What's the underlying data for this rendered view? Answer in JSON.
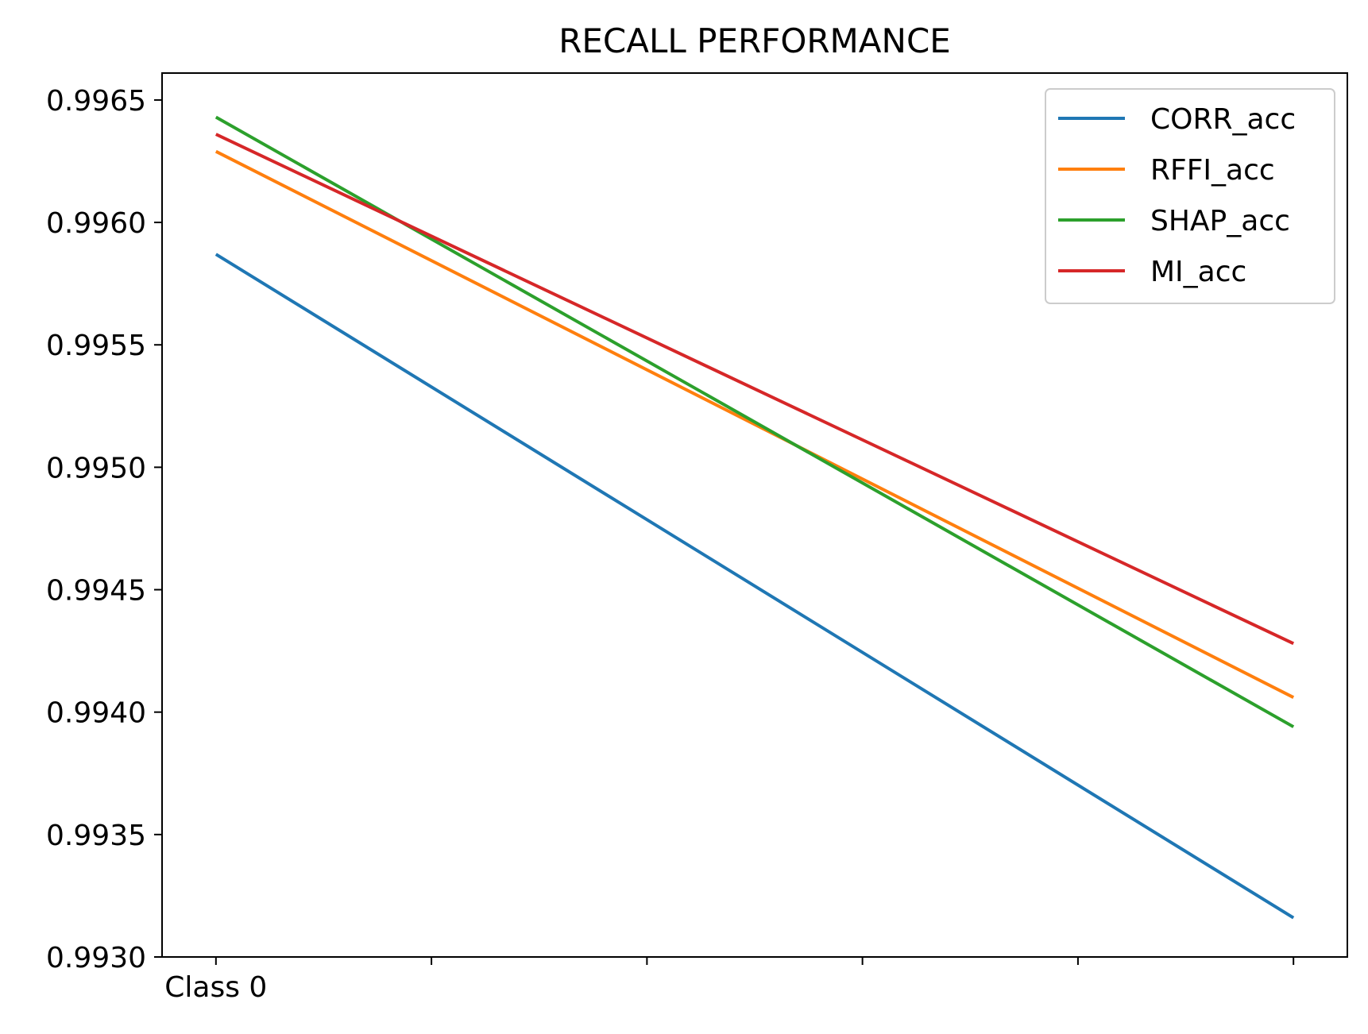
{
  "chart_data": {
    "type": "line",
    "title": "RECALL PERFORMANCE",
    "xlabel": "",
    "ylabel": "",
    "x": [
      0,
      5
    ],
    "x_tick_positions": [
      0,
      1,
      2,
      3,
      4,
      5
    ],
    "x_tick_labels": [
      "Class 0",
      "",
      "",
      "",
      "",
      ""
    ],
    "xlim": [
      -0.25,
      5.25
    ],
    "ylim": [
      0.993,
      0.99661
    ],
    "y_ticks": [
      0.993,
      0.9935,
      0.994,
      0.9945,
      0.995,
      0.9955,
      0.996,
      0.9965
    ],
    "y_tick_labels": [
      "0.9930",
      "0.9935",
      "0.9940",
      "0.9945",
      "0.9950",
      "0.9955",
      "0.9960",
      "0.9965"
    ],
    "grid": false,
    "legend_position": "top-right",
    "series": [
      {
        "name": "CORR_acc",
        "color": "#1f77b4",
        "values": [
          0.99587,
          0.99316
        ]
      },
      {
        "name": "RFFI_acc",
        "color": "#ff7f0e",
        "values": [
          0.99629,
          0.99406
        ]
      },
      {
        "name": "SHAP_acc",
        "color": "#2ca02c",
        "values": [
          0.99643,
          0.99394
        ]
      },
      {
        "name": "MI_acc",
        "color": "#d62728",
        "values": [
          0.99636,
          0.99428
        ]
      }
    ]
  }
}
